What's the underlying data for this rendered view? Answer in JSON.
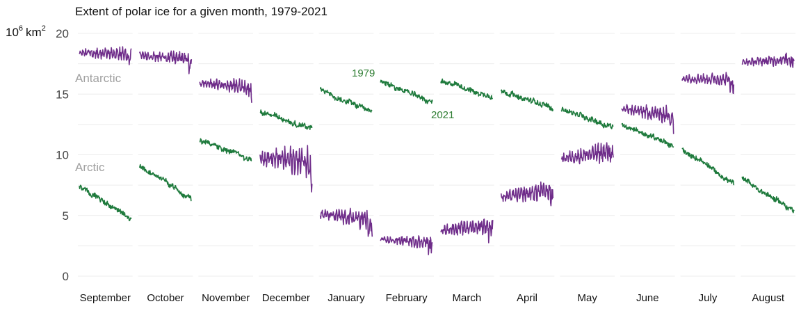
{
  "chart_data": {
    "type": "line",
    "title": "Extent of polar ice for a given month, 1979-2021",
    "ylabel_base": "10",
    "ylabel_exp": "6",
    "ylabel_unit": "km",
    "ylabel_unit_exp": "2",
    "ylim": [
      0,
      20
    ],
    "yticks": [
      "0",
      "5",
      "10",
      "15",
      "20"
    ],
    "grid": true,
    "legend": "inline",
    "panels": [
      "September",
      "October",
      "November",
      "December",
      "January",
      "February",
      "March",
      "April",
      "May",
      "June",
      "July",
      "August"
    ],
    "x_range": [
      1979,
      2021
    ],
    "series": [
      {
        "name": "Arctic",
        "color": "#1e7a3c",
        "start": [
          7.4,
          9.1,
          11.2,
          13.6,
          15.3,
          16.1,
          16.1,
          15.3,
          13.8,
          12.5,
          10.5,
          8.0
        ],
        "end": [
          4.7,
          6.4,
          9.6,
          12.1,
          13.5,
          14.3,
          14.7,
          13.8,
          12.3,
          10.7,
          7.6,
          5.4
        ]
      },
      {
        "name": "Antarctic",
        "color": "#6f2d8a",
        "start": [
          18.4,
          18.2,
          15.9,
          9.8,
          5.1,
          3.0,
          3.8,
          6.5,
          9.7,
          13.8,
          16.3,
          17.6
        ],
        "end": [
          18.3,
          17.9,
          15.6,
          9.4,
          4.6,
          2.8,
          4.2,
          7.1,
          10.3,
          13.2,
          16.2,
          17.9
        ],
        "amplitude": [
          0.55,
          0.55,
          0.6,
          1.2,
          0.8,
          0.5,
          0.7,
          0.8,
          0.8,
          0.7,
          0.55,
          0.5
        ]
      }
    ],
    "annotations": {
      "arctic_label": "Arctic",
      "antarctic_label": "Antarctic",
      "start_year": "1979",
      "end_year": "2021"
    }
  }
}
